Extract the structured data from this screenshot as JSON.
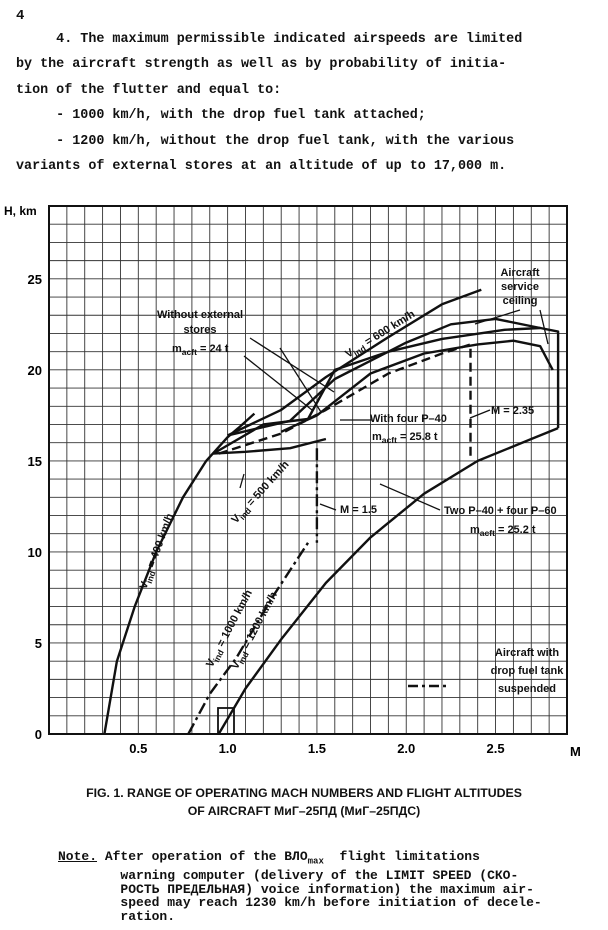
{
  "page_number": "4",
  "paragraph": {
    "lines": [
      "     4. The maximum permissible indicated airspeeds are limited",
      "by the aircraft strength as well as by probability of initia-",
      "tion of the flutter and equal to:",
      "     - 1000 km/h, with the drop fuel tank attached;",
      "     - 1200 km/h, without the drop fuel tank, with the various",
      "variants of external stores at an altitude of up to 17,000 m."
    ]
  },
  "chart_data": {
    "type": "line",
    "xlabel": "M",
    "ylabel": "H, km",
    "xlim": [
      0,
      2.9
    ],
    "ylim": [
      0,
      29
    ],
    "x_ticks": [
      "0.5",
      "1.0",
      "1.5",
      "2.0",
      "2.5"
    ],
    "y_ticks": [
      "0",
      "5",
      "10",
      "15",
      "20",
      "25"
    ],
    "grid": true,
    "series": [
      {
        "name": "Vind = 400 km/h",
        "style": "solid",
        "points": [
          [
            0.31,
            0
          ],
          [
            0.38,
            4
          ],
          [
            0.48,
            7
          ],
          [
            0.6,
            10
          ],
          [
            0.75,
            13
          ],
          [
            0.88,
            15
          ],
          [
            1.0,
            16.3
          ],
          [
            1.06,
            16.8
          ],
          [
            1.15,
            17.6
          ]
        ]
      },
      {
        "name": "Vind = 500 km/h",
        "style": "solid",
        "points": [
          [
            0.92,
            15.4
          ],
          [
            1.1,
            15.5
          ],
          [
            1.35,
            15.7
          ],
          [
            1.55,
            16.2
          ]
        ]
      },
      {
        "name": "Vind = 600 km/h",
        "style": "solid",
        "points": [
          [
            1.0,
            16.4
          ],
          [
            1.3,
            17.8
          ],
          [
            1.55,
            19.6
          ],
          [
            1.9,
            21.8
          ],
          [
            2.2,
            23.6
          ],
          [
            2.42,
            24.4
          ]
        ]
      },
      {
        "name": "Vind = 1000 km/h",
        "style": "dash-dot",
        "points": [
          [
            0.78,
            0
          ],
          [
            0.9,
            2.2
          ],
          [
            1.05,
            4.2
          ],
          [
            1.25,
            7.5
          ],
          [
            1.45,
            10.5
          ]
        ]
      },
      {
        "name": "Vind = 1200 km/h",
        "style": "solid",
        "points": [
          [
            0.95,
            0
          ],
          [
            1.1,
            2.5
          ],
          [
            1.3,
            5.2
          ],
          [
            1.55,
            8.3
          ],
          [
            1.8,
            10.8
          ],
          [
            2.1,
            13.2
          ],
          [
            2.4,
            15
          ],
          [
            2.7,
            16.2
          ],
          [
            2.85,
            16.8
          ]
        ]
      },
      {
        "name": "Without external stores, macft = 24 t",
        "style": "solid",
        "points": [
          [
            0.92,
            15.4
          ],
          [
            1.2,
            17
          ],
          [
            1.45,
            17.3
          ],
          [
            1.6,
            20
          ],
          [
            1.9,
            21
          ],
          [
            2.2,
            21.7
          ],
          [
            2.55,
            22.2
          ],
          [
            2.75,
            22.3
          ],
          [
            2.85,
            22.1
          ],
          [
            2.85,
            16.8
          ]
        ]
      },
      {
        "name": "With four P-40, macft = 25.8 t",
        "style": "solid",
        "points": [
          [
            1.3,
            16.6
          ],
          [
            1.5,
            17.5
          ],
          [
            1.8,
            19.8
          ],
          [
            2.1,
            20.9
          ],
          [
            2.4,
            21.4
          ],
          [
            2.6,
            21.6
          ],
          [
            2.75,
            21.3
          ],
          [
            2.82,
            20
          ]
        ]
      },
      {
        "name": "Two P-40 + four P-60, macft = 25.2 t",
        "style": "dashed",
        "points": [
          [
            0.95,
            15.4
          ],
          [
            1.3,
            16.5
          ],
          [
            1.55,
            17.8
          ],
          [
            1.9,
            19.8
          ],
          [
            2.2,
            20.9
          ],
          [
            2.36,
            21.4
          ],
          [
            2.36,
            15
          ]
        ]
      },
      {
        "name": "M = 1.5",
        "style": "dash-dot",
        "points": [
          [
            1.5,
            15.7
          ],
          [
            1.5,
            10.5
          ]
        ]
      },
      {
        "name": "Aircraft service ceiling",
        "style": "solid",
        "points": [
          [
            1.0,
            16.4
          ],
          [
            1.35,
            17.2
          ],
          [
            1.6,
            19.5
          ],
          [
            2.0,
            21.5
          ],
          [
            2.25,
            22.5
          ],
          [
            2.5,
            22.8
          ],
          [
            2.75,
            22.3
          ]
        ]
      }
    ],
    "annotations": {
      "without_external": {
        "l1": "Without external",
        "l2": "stores",
        "m": "m",
        "sub": "acft",
        "rest": " = 24 t"
      },
      "with_four": {
        "l1": "With four P–40",
        "m": "m",
        "sub": "acft",
        "rest": " = 25.8 t"
      },
      "two_p40": {
        "l1": "Two P–40 + four P–60",
        "m": "m",
        "sub": "acft",
        "rest": " = 25.2 t"
      },
      "service_ceiling": {
        "l1": "Aircraft",
        "l2": "service",
        "l3": "ceiling"
      },
      "drop_tank": {
        "l1": "Aircraft with",
        "l2": "drop fuel tank",
        "l3": "suspended"
      },
      "m235": "M = 2.35",
      "m15": "M = 1.5",
      "v400": {
        "v": "V",
        "sub": "ind",
        "rest": " = 400 km/h"
      },
      "v500": {
        "v": "V",
        "sub": "ind",
        "rest": " = 500 km/h"
      },
      "v600": {
        "v": "V",
        "sub": "ind",
        "rest": " = 600 km/h"
      },
      "v1000": {
        "v": "V",
        "sub": "ind",
        "rest": " = 1000 km/h"
      },
      "v1200": {
        "v": "V",
        "sub": "ind",
        "rest": " = 1200 km/h"
      }
    }
  },
  "caption": {
    "line1": "FIG. 1. RANGE OF OPERATING MACH NUMBERS AND FLIGHT ALTITUDES",
    "line2": "OF AIRCRAFT МиГ–25ПД (МиГ–25ПДС)"
  },
  "note": {
    "label": "Note.",
    "line1_a": " After operation of the ВЛО",
    "line1_sub": "max",
    "line1_b": "  flight limitations",
    "lines": [
      "        warning computer (delivery of the LIMIT SPEED (СКО-",
      "        РОСТЬ ПРЕДЕЛЬНАЯ) voice information) the maximum air-",
      "        speed may reach 1230 km/h before initiation of decele-",
      "        ration."
    ]
  }
}
